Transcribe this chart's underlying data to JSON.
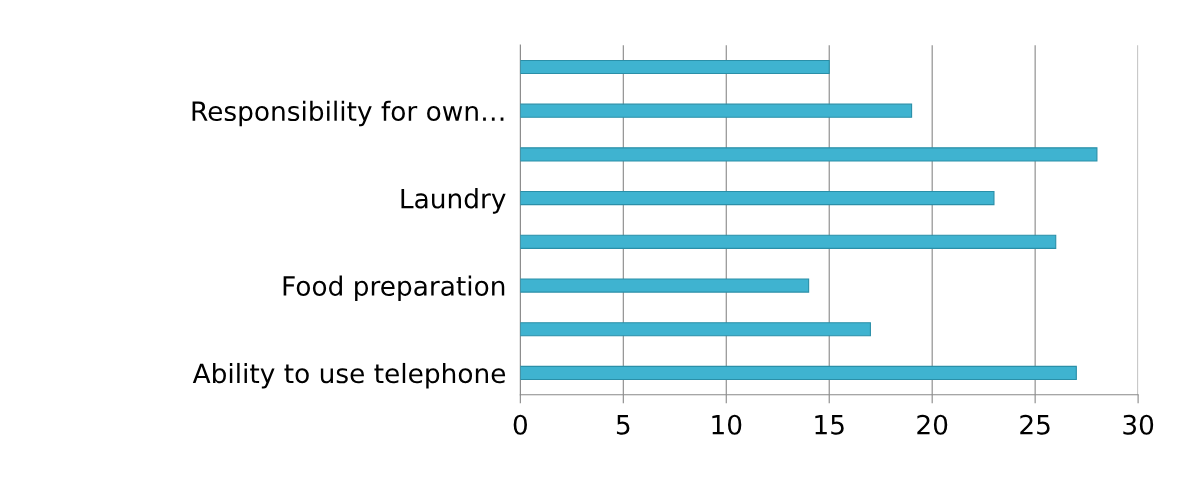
{
  "chart_data": {
    "type": "bar",
    "orientation": "horizontal",
    "categories": [
      null,
      "Responsibility for own…",
      null,
      "Laundry",
      null,
      "Food preparation",
      null,
      "Ability to use telephone"
    ],
    "values": [
      15,
      19,
      28,
      23,
      26,
      14,
      17,
      27
    ],
    "color": "#3fb3d0",
    "xlim": [
      0,
      30
    ],
    "xticks": [
      0,
      5,
      10,
      15,
      20,
      25,
      30
    ],
    "grid": "x",
    "legend": false
  }
}
